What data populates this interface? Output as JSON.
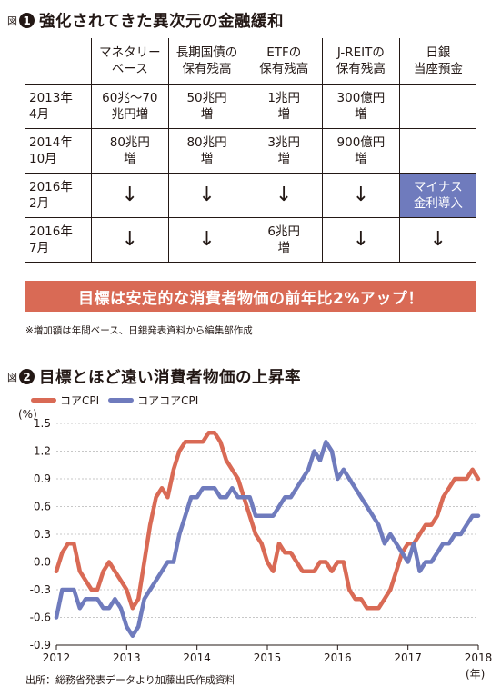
{
  "fig1": {
    "prefix": "図",
    "number": "1",
    "title": "強化されてきた異次元の金融緩和",
    "headers": [
      {
        "l1": "マネタリー",
        "l2": "ベース"
      },
      {
        "l1": "長期国債の",
        "l2": "保有残高"
      },
      {
        "l1": "ETFの",
        "l2": "保有残高"
      },
      {
        "l1": "J-REITの",
        "l2": "保有残高"
      },
      {
        "l1": "日銀",
        "l2": "当座預金"
      }
    ],
    "rows": [
      {
        "label1": "2013年",
        "label2": "4月",
        "cells": [
          {
            "l1": "60兆～70",
            "l2": "兆円増"
          },
          {
            "l1": "50兆円",
            "l2": "増"
          },
          {
            "l1": "1兆円",
            "l2": "増"
          },
          {
            "l1": "300億円",
            "l2": "増"
          },
          {
            "l1": "",
            "l2": ""
          }
        ]
      },
      {
        "label1": "2014年",
        "label2": "10月",
        "cells": [
          {
            "l1": "80兆円",
            "l2": "増"
          },
          {
            "l1": "80兆円",
            "l2": "増"
          },
          {
            "l1": "3兆円",
            "l2": "増"
          },
          {
            "l1": "900億円",
            "l2": "増"
          },
          {
            "l1": "",
            "l2": ""
          }
        ]
      },
      {
        "label1": "2016年",
        "label2": "2月",
        "cells": [
          {
            "l1": "↓",
            "l2": ""
          },
          {
            "l1": "↓",
            "l2": ""
          },
          {
            "l1": "↓",
            "l2": ""
          },
          {
            "l1": "↓",
            "l2": ""
          },
          {
            "l1": "マイナス",
            "l2": "金利導入"
          }
        ]
      },
      {
        "label1": "2016年",
        "label2": "7月",
        "cells": [
          {
            "l1": "↓",
            "l2": ""
          },
          {
            "l1": "↓",
            "l2": ""
          },
          {
            "l1": "6兆円",
            "l2": "増"
          },
          {
            "l1": "↓",
            "l2": ""
          },
          {
            "l1": "↓",
            "l2": ""
          }
        ]
      }
    ],
    "banner": "目標は安定的な消費者物価の前年比2%アップ！",
    "note": "※増加額は年間ベース、日銀発表資料から編集部作成",
    "highlight_color": "#6f7bbd",
    "banner_color": "#d96a55"
  },
  "fig2": {
    "prefix": "図",
    "number": "2",
    "title": "目標とほど遠い消費者物価の上昇率",
    "source": "出所：総務省発表データより加藤出氏作成資料"
  },
  "chart_data": {
    "type": "line",
    "ylabel": "(%)",
    "xlabel": "(年)",
    "ylim": [
      -0.9,
      1.5
    ],
    "yticks": [
      "1.5",
      "1.2",
      "0.9",
      "0.6",
      "0.3",
      "0.0",
      "-0.3",
      "-0.6",
      "-0.9"
    ],
    "xticks": [
      "2012",
      "2013",
      "2014",
      "2015",
      "2016",
      "2017",
      "2018"
    ],
    "x_start": "2012-01",
    "x_end": "2018-01",
    "grid": true,
    "legend_position": "top-left",
    "series": [
      {
        "name": "コアCPI",
        "color": "#d96a55",
        "values": [
          -0.1,
          0.1,
          0.2,
          0.2,
          -0.1,
          -0.2,
          -0.3,
          -0.3,
          -0.1,
          0.0,
          -0.1,
          -0.2,
          -0.3,
          -0.5,
          -0.4,
          0.0,
          0.4,
          0.7,
          0.8,
          0.7,
          1.0,
          1.2,
          1.3,
          1.3,
          1.3,
          1.3,
          1.4,
          1.4,
          1.3,
          1.1,
          1.0,
          0.9,
          0.7,
          0.5,
          0.3,
          0.2,
          0.0,
          -0.1,
          0.2,
          0.1,
          0.1,
          0.0,
          -0.1,
          -0.1,
          -0.1,
          0.0,
          0.0,
          -0.1,
          0.0,
          0.0,
          -0.3,
          -0.4,
          -0.4,
          -0.5,
          -0.5,
          -0.5,
          -0.4,
          -0.3,
          -0.1,
          0.1,
          0.2,
          0.2,
          0.3,
          0.4,
          0.4,
          0.5,
          0.7,
          0.8,
          0.9,
          0.9,
          0.9,
          1.0,
          0.9
        ]
      },
      {
        "name": "コアコアCPI",
        "color": "#6f7bbd",
        "values": [
          -0.6,
          -0.3,
          -0.3,
          -0.3,
          -0.5,
          -0.4,
          -0.4,
          -0.4,
          -0.5,
          -0.5,
          -0.4,
          -0.5,
          -0.7,
          -0.8,
          -0.7,
          -0.4,
          -0.3,
          -0.2,
          -0.1,
          0.0,
          0.0,
          0.3,
          0.5,
          0.7,
          0.7,
          0.8,
          0.8,
          0.8,
          0.7,
          0.7,
          0.8,
          0.7,
          0.7,
          0.7,
          0.5,
          0.5,
          0.5,
          0.5,
          0.6,
          0.7,
          0.7,
          0.8,
          0.9,
          1.0,
          1.2,
          1.1,
          1.3,
          1.2,
          0.9,
          1.0,
          0.9,
          0.8,
          0.7,
          0.6,
          0.5,
          0.4,
          0.2,
          0.3,
          0.2,
          0.1,
          0.0,
          0.2,
          -0.1,
          0.0,
          0.0,
          0.1,
          0.2,
          0.2,
          0.3,
          0.3,
          0.4,
          0.5,
          0.5
        ]
      }
    ]
  }
}
